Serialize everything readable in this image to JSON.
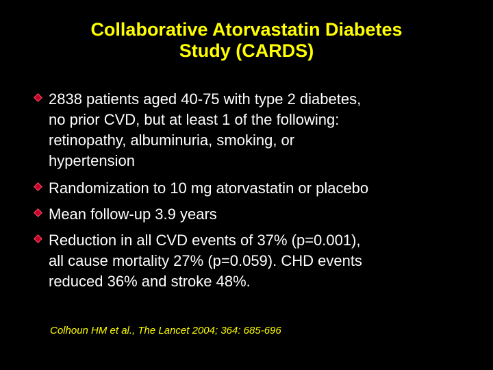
{
  "slide": {
    "title_lines": [
      "Collaborative Atorvastatin Diabetes",
      "Study (CARDS)"
    ],
    "bullets": [
      {
        "lines": [
          "2838 patients aged 40-75 with type 2 diabetes,",
          "no prior CVD, but at least 1 of the following:",
          "retinopathy, albuminuria, smoking, or",
          "hypertension"
        ]
      },
      {
        "lines": [
          "Randomization to 10 mg atorvastatin or placebo"
        ]
      },
      {
        "lines": [
          "Mean follow-up 3.9 years"
        ]
      },
      {
        "lines": [
          "Reduction in all CVD events of 37% (p=0.001),",
          "all cause mortality 27% (p=0.059).  CHD events",
          "reduced 36% and stroke 48%."
        ]
      }
    ],
    "citation": "Colhoun HM et al., The Lancet 2004; 364: 685-696",
    "colors": {
      "background": "#000000",
      "title": "#FFFF00",
      "body_text": "#FFFFFF",
      "bullet_marker": "#C8002E",
      "citation": "#FFFF00"
    },
    "icons": {
      "bullet_marker": "diamond-bullet-icon"
    }
  }
}
